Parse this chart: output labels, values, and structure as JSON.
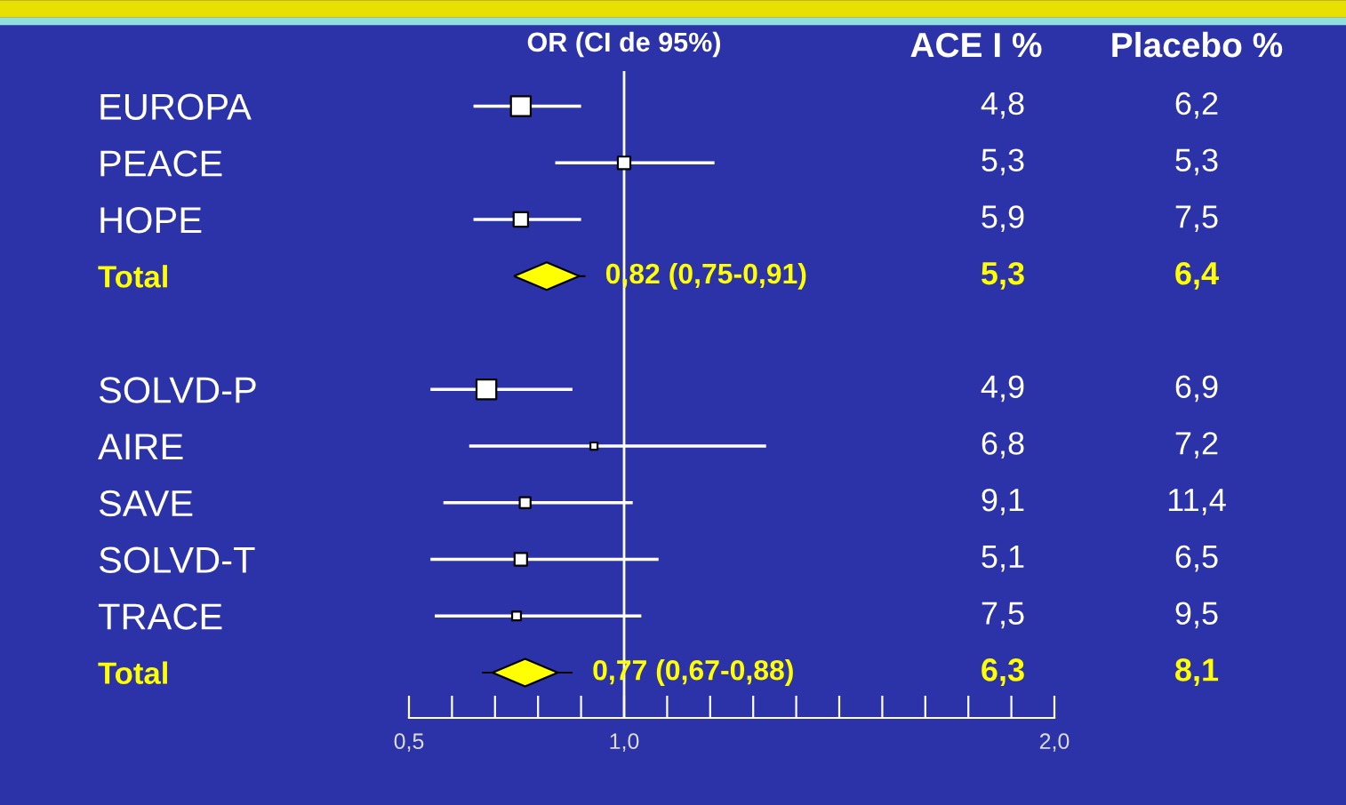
{
  "chart_data": {
    "type": "scatter",
    "orientation": "horizontal",
    "title": "OR (CI de 95%)",
    "categories": [
      "EUROPA",
      "PEACE",
      "HOPE",
      "Total",
      null,
      "SOLVD-P",
      "AIRE",
      "SAVE",
      "SOLVD-T",
      "TRACE",
      "Total"
    ],
    "series": [
      {
        "type": "bubble",
        "marker": "square",
        "color": "#ffffff",
        "values": [
          0.76,
          1.0,
          0.76,
          null,
          null,
          0.68,
          0.93,
          0.77,
          0.76,
          0.75,
          null
        ],
        "errors": [
          [
            0.65,
            0.9
          ],
          [
            0.84,
            1.21
          ],
          [
            0.65,
            0.9
          ],
          null,
          null,
          [
            0.55,
            0.88
          ],
          [
            0.64,
            1.33
          ],
          [
            0.58,
            1.02
          ],
          [
            0.55,
            1.08
          ],
          [
            0.56,
            1.04
          ],
          null
        ],
        "sizes": [
          1,
          0.4,
          0.53,
          null,
          null,
          1,
          0.13,
          0.3,
          0.4,
          0.2,
          null
        ]
      },
      {
        "type": "scatter",
        "marker": "diamond",
        "color": "#ffff00",
        "values": [
          null,
          null,
          null,
          0.82,
          null,
          null,
          null,
          null,
          null,
          null,
          0.77
        ],
        "errors": [
          null,
          null,
          null,
          [
            0.75,
            0.91
          ],
          null,
          null,
          null,
          null,
          null,
          null,
          [
            0.67,
            0.88
          ]
        ],
        "value_labels": [
          null,
          null,
          null,
          "0,82 (0,75-0,91)",
          null,
          null,
          null,
          null,
          null,
          null,
          "0,77 (0,67-0,88)"
        ]
      }
    ],
    "xlim": [
      0.5,
      2.0
    ],
    "xticks": [
      {
        "value": 0.5,
        "label": "0,5"
      },
      {
        "value": 0.6,
        "label": null
      },
      {
        "value": 0.7,
        "label": null
      },
      {
        "value": 0.8,
        "label": null
      },
      {
        "value": 0.9,
        "label": null
      },
      {
        "value": 1.0,
        "label": "1,0"
      },
      {
        "value": 1.1,
        "label": null
      },
      {
        "value": 1.2,
        "label": null
      },
      {
        "value": 1.3,
        "label": null
      },
      {
        "value": 1.4,
        "label": null
      },
      {
        "value": 1.5,
        "label": null
      },
      {
        "value": 1.6,
        "label": null
      },
      {
        "value": 1.7,
        "label": null
      },
      {
        "value": 1.8,
        "label": null
      },
      {
        "value": 1.9,
        "label": null
      },
      {
        "value": 2.0,
        "label": "2,0"
      }
    ],
    "ref_lines": [
      {
        "axis": "x",
        "value": 1.0,
        "color": "#ffffff"
      }
    ],
    "annotations": [
      "ACE I %",
      "Placebo %",
      "4,8",
      "6,2",
      "5,3",
      "5,3",
      "5,9",
      "7,5",
      "5,3",
      "6,4",
      "4,9",
      "6,9",
      "6,8",
      "7,2",
      "9,1",
      "11,4",
      "5,1",
      "6,5",
      "7,5",
      "9,5",
      "6,3",
      "8,1"
    ],
    "grid": false
  }
}
